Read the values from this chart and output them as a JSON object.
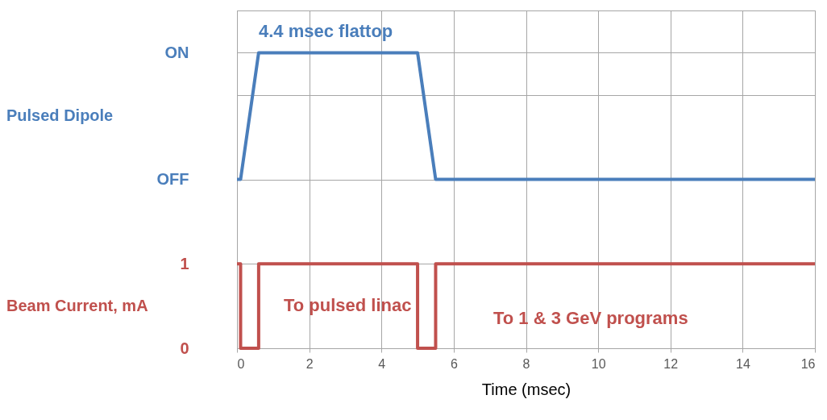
{
  "chart_data": {
    "type": "line",
    "xlabel": "Time (msec)",
    "x": [
      0,
      0.1,
      0.6,
      5.0,
      5.5,
      16
    ],
    "series": [
      {
        "name": "Pulsed Dipole",
        "color": "#4a7ebb",
        "values": [
          2,
          2,
          3.5,
          3.5,
          2,
          2
        ]
      },
      {
        "name": "Beam Current, mA",
        "color": "#c0504d",
        "x": [
          0,
          0.1,
          0.1,
          0.6,
          0.6,
          5.0,
          5.0,
          5.5,
          5.5,
          16
        ],
        "values": [
          1,
          1,
          0,
          0,
          1,
          1,
          0,
          0,
          1,
          1
        ]
      }
    ],
    "xlim": [
      0,
      16
    ],
    "xticks": [
      0,
      2,
      4,
      6,
      8,
      10,
      12,
      14,
      16
    ],
    "ylim": [
      0,
      4
    ],
    "yticks": [
      {
        "value": 0,
        "label": "0"
      },
      {
        "value": 1,
        "label": "1"
      },
      {
        "value": 2,
        "label": "OFF"
      },
      {
        "value": 3,
        "label": null
      },
      {
        "value": 3.5,
        "label": "ON"
      },
      {
        "value": 4,
        "label": null
      }
    ],
    "annotations": [
      "4.4 msec flattop",
      "To pulsed linac",
      "To 1 & 3 GeV programs"
    ],
    "grid": true,
    "line_style": "solid",
    "marker": "none"
  }
}
